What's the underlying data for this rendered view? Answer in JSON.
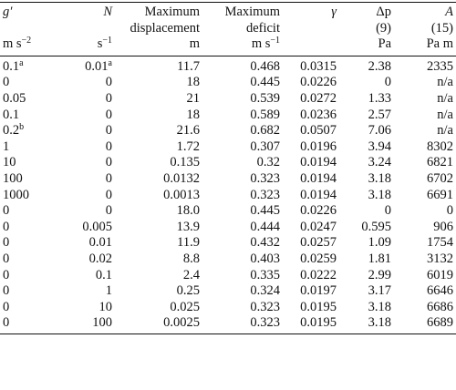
{
  "header": {
    "row1": [
      "g′",
      "N",
      "Maximum",
      "Maximum",
      "γ",
      "Δp",
      "A"
    ],
    "row2": [
      "",
      "",
      "displacement",
      "deficit",
      "",
      "(9)",
      "(15)"
    ],
    "row3": [
      "m s−2",
      "s−1",
      "m",
      "m s−1",
      "",
      "Pa",
      "Pa m"
    ]
  },
  "rows": [
    {
      "g": "0.1",
      "g_sup": "a",
      "n": "0.01",
      "n_sup": "a",
      "disp": "11.7",
      "deficit": "0.468",
      "gamma": "0.0315",
      "dp": "2.38",
      "a": "2335"
    },
    {
      "g": "0",
      "g_sup": "",
      "n": "0",
      "n_sup": "",
      "disp": "18",
      "deficit": "0.445",
      "gamma": "0.0226",
      "dp": "0",
      "a": "n/a"
    },
    {
      "g": "0.05",
      "g_sup": "",
      "n": "0",
      "n_sup": "",
      "disp": "21",
      "deficit": "0.539",
      "gamma": "0.0272",
      "dp": "1.33",
      "a": "n/a"
    },
    {
      "g": "0.1",
      "g_sup": "",
      "n": "0",
      "n_sup": "",
      "disp": "18",
      "deficit": "0.589",
      "gamma": "0.0236",
      "dp": "2.57",
      "a": "n/a"
    },
    {
      "g": "0.2",
      "g_sup": "b",
      "n": "0",
      "n_sup": "",
      "disp": "21.6",
      "deficit": "0.682",
      "gamma": "0.0507",
      "dp": "7.06",
      "a": "n/a"
    },
    {
      "g": "1",
      "g_sup": "",
      "n": "0",
      "n_sup": "",
      "disp": "1.72",
      "deficit": "0.307",
      "gamma": "0.0196",
      "dp": "3.94",
      "a": "8302"
    },
    {
      "g": "10",
      "g_sup": "",
      "n": "0",
      "n_sup": "",
      "disp": "0.135",
      "deficit": "0.32",
      "gamma": "0.0194",
      "dp": "3.24",
      "a": "6821"
    },
    {
      "g": "100",
      "g_sup": "",
      "n": "0",
      "n_sup": "",
      "disp": "0.0132",
      "deficit": "0.323",
      "gamma": "0.0194",
      "dp": "3.18",
      "a": "6702"
    },
    {
      "g": "1000",
      "g_sup": "",
      "n": "0",
      "n_sup": "",
      "disp": "0.0013",
      "deficit": "0.323",
      "gamma": "0.0194",
      "dp": "3.18",
      "a": "6691"
    },
    {
      "g": "0",
      "g_sup": "",
      "n": "0",
      "n_sup": "",
      "disp": "18.0",
      "deficit": "0.445",
      "gamma": "0.0226",
      "dp": "0",
      "a": "0"
    },
    {
      "g": "0",
      "g_sup": "",
      "n": "0.005",
      "n_sup": "",
      "disp": "13.9",
      "deficit": "0.444",
      "gamma": "0.0247",
      "dp": "0.595",
      "a": "906"
    },
    {
      "g": "0",
      "g_sup": "",
      "n": "0.01",
      "n_sup": "",
      "disp": "11.9",
      "deficit": "0.432",
      "gamma": "0.0257",
      "dp": "1.09",
      "a": "1754"
    },
    {
      "g": "0",
      "g_sup": "",
      "n": "0.02",
      "n_sup": "",
      "disp": "8.8",
      "deficit": "0.403",
      "gamma": "0.0259",
      "dp": "1.81",
      "a": "3132"
    },
    {
      "g": "0",
      "g_sup": "",
      "n": "0.1",
      "n_sup": "",
      "disp": "2.4",
      "deficit": "0.335",
      "gamma": "0.0222",
      "dp": "2.99",
      "a": "6019"
    },
    {
      "g": "0",
      "g_sup": "",
      "n": "1",
      "n_sup": "",
      "disp": "0.25",
      "deficit": "0.324",
      "gamma": "0.0197",
      "dp": "3.17",
      "a": "6646"
    },
    {
      "g": "0",
      "g_sup": "",
      "n": "10",
      "n_sup": "",
      "disp": "0.025",
      "deficit": "0.323",
      "gamma": "0.0195",
      "dp": "3.18",
      "a": "6686"
    },
    {
      "g": "0",
      "g_sup": "",
      "n": "100",
      "n_sup": "",
      "disp": "0.0025",
      "deficit": "0.323",
      "gamma": "0.0195",
      "dp": "3.18",
      "a": "6689"
    }
  ]
}
